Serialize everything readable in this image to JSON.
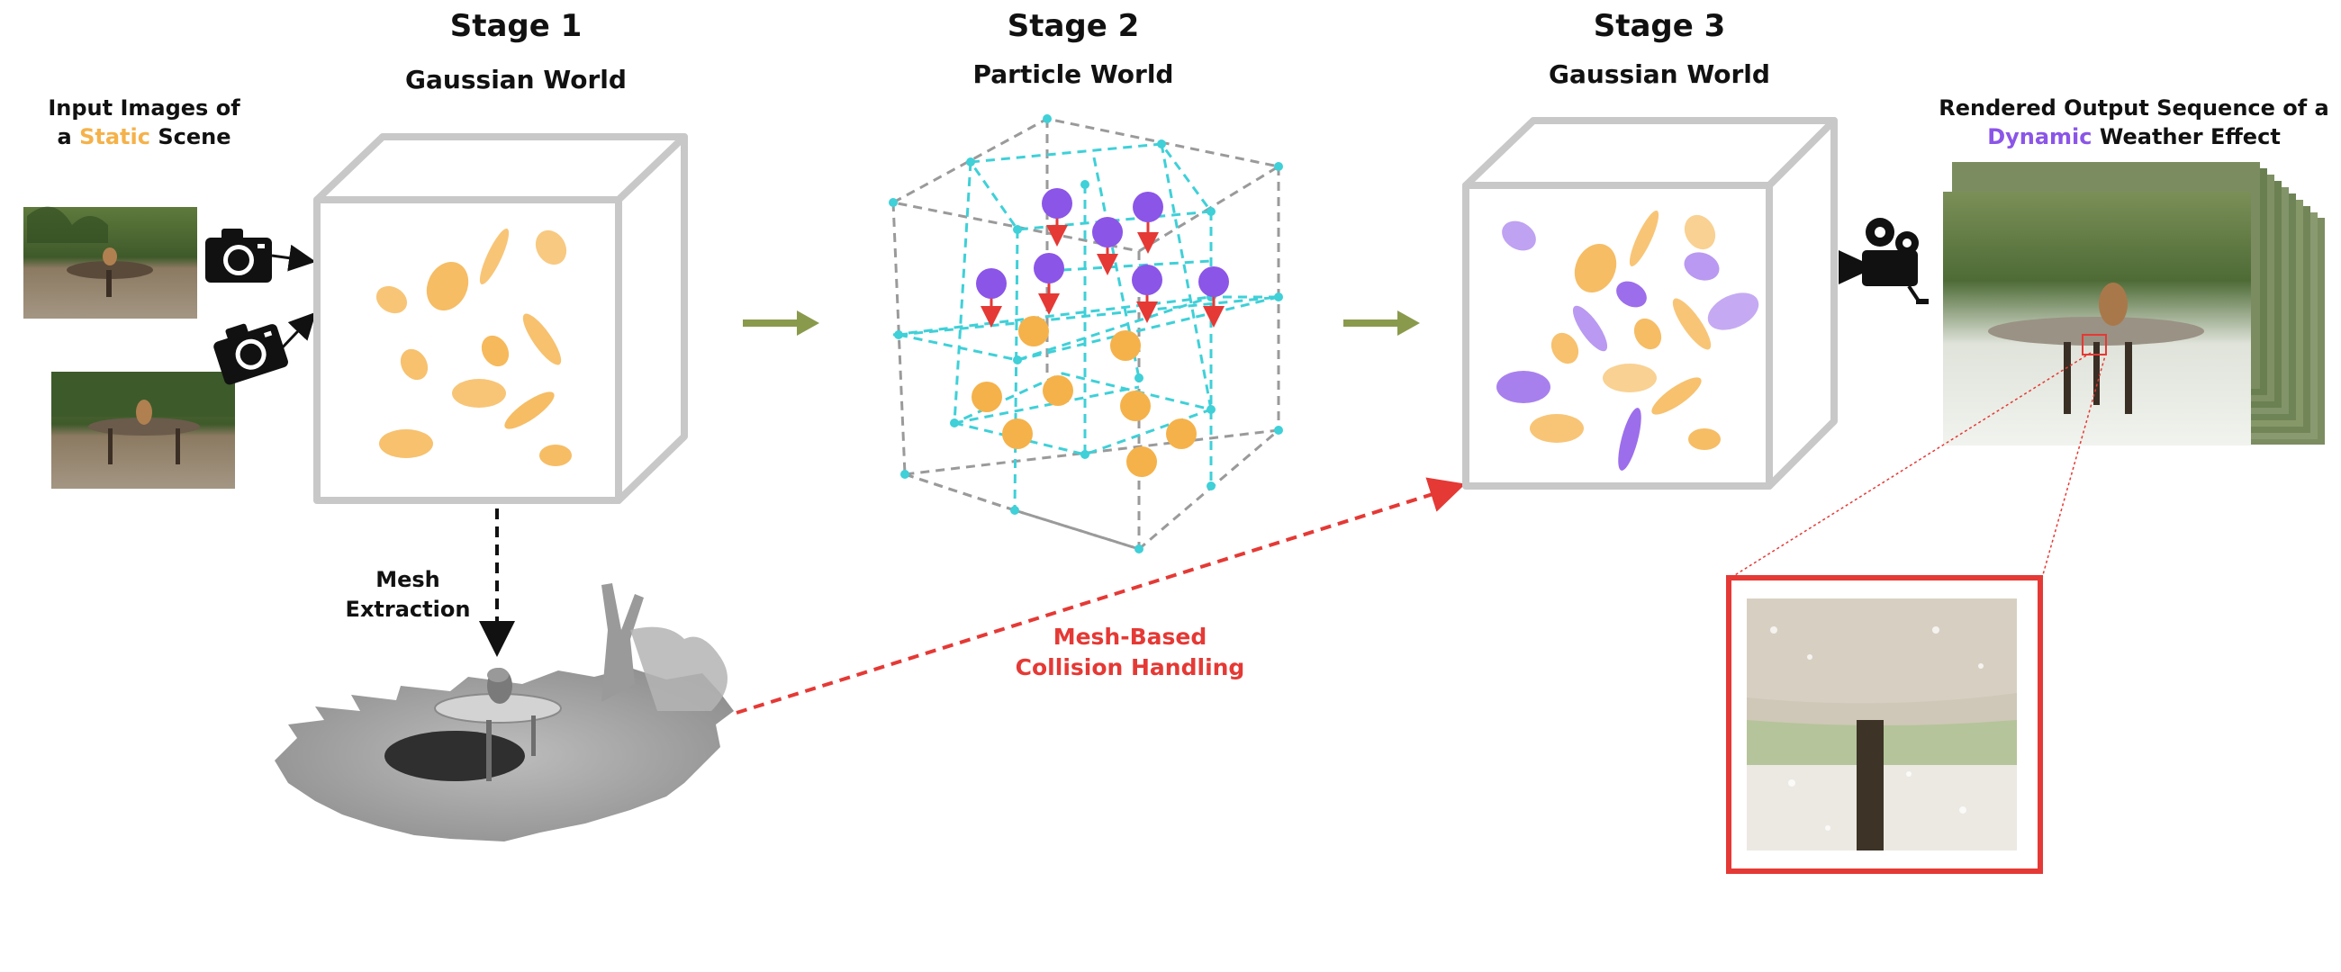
{
  "stages": [
    {
      "title": "Stage 1",
      "subtitle": "Gaussian World"
    },
    {
      "title": "Stage 2",
      "subtitle": "Particle World"
    },
    {
      "title": "Stage 3",
      "subtitle": "Gaussian World"
    }
  ],
  "input_label": {
    "line1": "Input Images of",
    "line2_pre": "a ",
    "highlight": "Static",
    "line2_post": " Scene"
  },
  "output_label": {
    "line1": "Rendered Output Sequence of a",
    "highlight": "Dynamic",
    "line2_post": " Weather Effect"
  },
  "mesh_label": {
    "line1": "Mesh",
    "line2": "Extraction"
  },
  "collision_label": {
    "line1": "Mesh-Based",
    "line2": "Collision Handling"
  },
  "colors": {
    "static_orange": "#f5b24a",
    "dynamic_purple": "#8b55e8",
    "collision_red": "#e53935",
    "arrow_olive": "#8a9a4c",
    "grid_cyan": "#3fd0d8",
    "cube_gray": "#c8c8c8"
  },
  "icons": [
    "camera-icon",
    "video-camera-icon",
    "down-arrow-icon"
  ]
}
